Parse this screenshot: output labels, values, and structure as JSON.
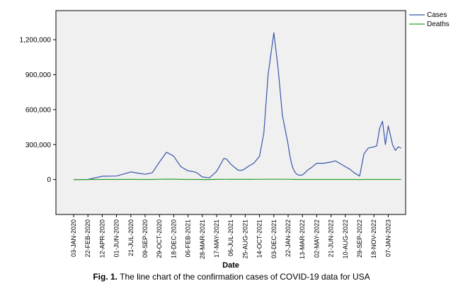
{
  "chart_data": {
    "type": "line",
    "title": "",
    "xlabel": "Date",
    "ylabel": "",
    "ylim": [
      -300000,
      1450000
    ],
    "grid": false,
    "legend_position": "top-right",
    "y_ticks": [
      0,
      300000,
      600000,
      900000,
      1200000
    ],
    "y_tick_labels": [
      "0",
      "300,000",
      "600,000",
      "900,000",
      "1,200,000"
    ],
    "x_tick_labels": [
      "03-JAN-2020",
      "22-FEB-2020",
      "12-APR-2020",
      "01-JUN-2020",
      "21-JUL-2020",
      "09-SEP-2020",
      "29-OCT-2020",
      "18-DEC-2020",
      "06-FEB-2021",
      "28-MAR-2021",
      "17-MAY-2021",
      "06-JUL-2021",
      "25-AUG-2021",
      "14-OCT-2021",
      "03-DEC-2021",
      "22-JAN-2022",
      "13-MAR-2022",
      "02-MAY-2022",
      "21-JUN-2022",
      "10-AUG-2022",
      "29-SEP-2022",
      "18-NOV-2022",
      "07-JAN-2023"
    ],
    "x": [
      0,
      1,
      2,
      3,
      4,
      4.5,
      5,
      5.5,
      6,
      6.5,
      7,
      7.5,
      8,
      8.3,
      8.6,
      9,
      9.5,
      10,
      10.5,
      10.7,
      11,
      11.5,
      11.8,
      12,
      12.3,
      12.6,
      13,
      13.3,
      13.6,
      14,
      14.3,
      14.6,
      15,
      15.1,
      15.2,
      15.3,
      15.4,
      15.5,
      15.6,
      15.7,
      15.8,
      15.9,
      16,
      16.2,
      16.4,
      16.6,
      17,
      17.5,
      18,
      18.3,
      18.6,
      19,
      19.3,
      19.6,
      20,
      20.3,
      20.6,
      21,
      21.2,
      21.4,
      21.6,
      21.8,
      22,
      22.3,
      22.5,
      22.7,
      22.9
    ],
    "series": [
      {
        "name": "Cases",
        "color": "#3a56a8",
        "values": [
          0,
          1000,
          28000,
          30000,
          65000,
          55000,
          45000,
          58000,
          150000,
          235000,
          200000,
          110000,
          75000,
          70000,
          60000,
          22000,
          15000,
          70000,
          180000,
          175000,
          130000,
          80000,
          80000,
          95000,
          120000,
          140000,
          200000,
          400000,
          900000,
          1260000,
          950000,
          550000,
          300000,
          220000,
          160000,
          110000,
          80000,
          60000,
          45000,
          40000,
          38000,
          36000,
          40000,
          60000,
          85000,
          100000,
          140000,
          140000,
          150000,
          160000,
          140000,
          110000,
          90000,
          60000,
          30000,
          220000,
          270000,
          280000,
          290000,
          440000,
          500000,
          300000,
          460000,
          300000,
          250000,
          280000,
          270000
        ]
      },
      {
        "name": "Deaths",
        "color": "#2ca02c",
        "values": [
          0,
          0,
          1000,
          1000,
          1200,
          1000,
          800,
          1000,
          2500,
          3500,
          3000,
          1500,
          700,
          600,
          500,
          300,
          300,
          1200,
          2000,
          1800,
          1500,
          1200,
          1200,
          1300,
          1500,
          1800,
          2200,
          2500,
          2700,
          2800,
          2600,
          2400,
          2000,
          1800,
          1500,
          1200,
          1000,
          800,
          700,
          600,
          500,
          500,
          500,
          500,
          600,
          700,
          800,
          800,
          800,
          800,
          800,
          700,
          600,
          500,
          400,
          500,
          600,
          600,
          600,
          700,
          700,
          600,
          600,
          500,
          500,
          500,
          500
        ]
      }
    ]
  },
  "legend": {
    "cases_label": "Cases",
    "deaths_label": "Deaths"
  },
  "caption": {
    "prefix": "Fig. 1.",
    "text": " The line chart of the confirmation cases of COVID-19 data for USA"
  }
}
